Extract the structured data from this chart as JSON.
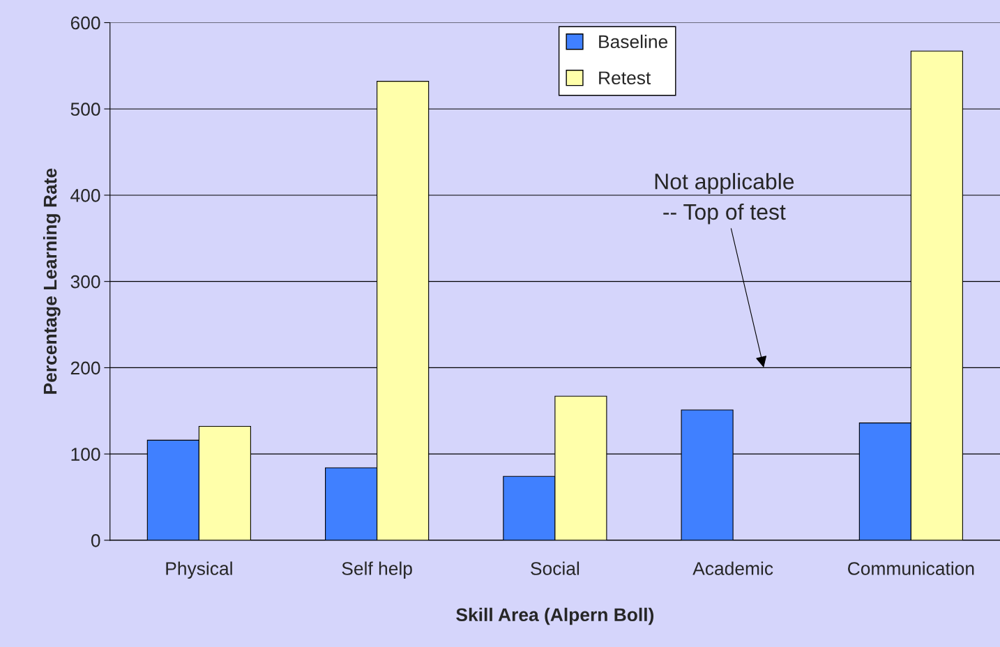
{
  "chart_data": {
    "type": "bar",
    "xlabel": "Skill Area (Alpern Boll)",
    "ylabel": "Percentage Learning Rate",
    "categories": [
      "Physical",
      "Self help",
      "Social",
      "Academic",
      "Communication"
    ],
    "series": [
      {
        "name": "Baseline",
        "color": "#4080ff",
        "values": [
          116,
          84,
          74,
          151,
          136
        ]
      },
      {
        "name": "Retest",
        "color": "#ffffaa",
        "values": [
          132,
          532,
          167,
          null,
          567
        ]
      }
    ],
    "ylim": [
      0,
      600
    ],
    "yticks": [
      0,
      100,
      200,
      300,
      400,
      500,
      600
    ],
    "grid": "y",
    "legend": "top",
    "annotations": [
      "Not applicable\n-- Top of test"
    ]
  }
}
